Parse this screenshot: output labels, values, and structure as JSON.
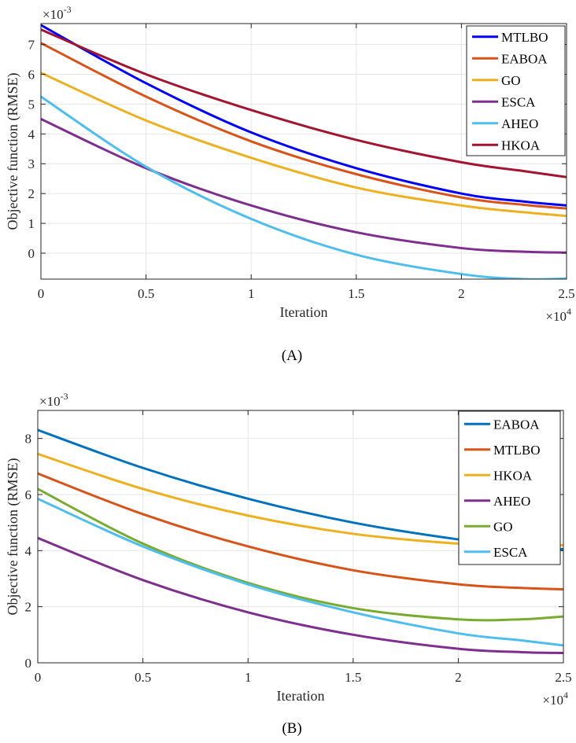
{
  "chart_data": [
    {
      "type": "line",
      "caption": "(A)",
      "xlabel": "Iteration",
      "ylabel": "Objective function (RMSE)",
      "x_multiplier": "×10",
      "x_multiplier_exp": "4",
      "y_multiplier": "×10",
      "y_multiplier_exp": "-3",
      "xlim": [
        0,
        2.5
      ],
      "ylim": [
        -0.87,
        7.7
      ],
      "xticks": [
        0,
        0.5,
        1,
        1.5,
        2,
        2.5
      ],
      "xtick_labels": [
        "0",
        "0.5",
        "1",
        "1.5",
        "2",
        "2.5"
      ],
      "yticks": [
        0,
        1,
        2,
        3,
        4,
        5,
        6,
        7
      ],
      "ytick_labels": [
        "0",
        "1",
        "2",
        "3",
        "4",
        "5",
        "6",
        "7"
      ],
      "grid": true,
      "legend_position": "top-right",
      "x": [
        0,
        0.5,
        1,
        1.5,
        2,
        2.3,
        2.5
      ],
      "series": [
        {
          "name": "MTLBO",
          "color": "#0000ff",
          "values": [
            7.65,
            5.7,
            4.05,
            2.85,
            2.0,
            1.73,
            1.6
          ]
        },
        {
          "name": "EABOA",
          "color": "#d95319",
          "values": [
            7.05,
            5.25,
            3.75,
            2.65,
            1.87,
            1.62,
            1.5
          ]
        },
        {
          "name": "GO",
          "color": "#edb120",
          "values": [
            6.05,
            4.45,
            3.2,
            2.2,
            1.6,
            1.37,
            1.25
          ]
        },
        {
          "name": "ESCA",
          "color": "#7e2f8e",
          "values": [
            4.5,
            2.85,
            1.6,
            0.7,
            0.17,
            0.05,
            0.02
          ]
        },
        {
          "name": "AHEO",
          "color": "#4dbeee",
          "values": [
            5.25,
            2.9,
            1.15,
            -0.05,
            -0.7,
            -0.87,
            -0.85
          ]
        },
        {
          "name": "HKOA",
          "color": "#a2142f",
          "values": [
            7.5,
            6.0,
            4.8,
            3.8,
            3.05,
            2.75,
            2.55
          ]
        }
      ]
    },
    {
      "type": "line",
      "caption": "(B)",
      "xlabel": "Iteration",
      "ylabel": "Objective function (RMSE)",
      "x_multiplier": "×10",
      "x_multiplier_exp": "4",
      "y_multiplier": "×10",
      "y_multiplier_exp": "-3",
      "xlim": [
        0,
        2.5
      ],
      "ylim": [
        0,
        9
      ],
      "xticks": [
        0,
        0.5,
        1,
        1.5,
        2,
        2.5
      ],
      "xtick_labels": [
        "0",
        "0.5",
        "1",
        "1.5",
        "2",
        "2.5"
      ],
      "yticks": [
        0,
        2,
        4,
        6,
        8
      ],
      "ytick_labels": [
        "0",
        "2",
        "4",
        "6",
        "8"
      ],
      "grid": true,
      "legend_position": "top-right",
      "x": [
        0,
        0.5,
        1,
        1.5,
        2,
        2.3,
        2.5
      ],
      "series": [
        {
          "name": "EABOA",
          "color": "#0072bd",
          "values": [
            8.3,
            6.95,
            5.85,
            5.0,
            4.4,
            4.17,
            4.05
          ]
        },
        {
          "name": "MTLBO",
          "color": "#d95319",
          "values": [
            6.75,
            5.3,
            4.15,
            3.3,
            2.8,
            2.67,
            2.62
          ]
        },
        {
          "name": "HKOA",
          "color": "#edb120",
          "values": [
            7.45,
            6.2,
            5.25,
            4.6,
            4.25,
            4.18,
            4.2
          ]
        },
        {
          "name": "AHEO",
          "color": "#7e2f8e",
          "values": [
            4.45,
            2.95,
            1.8,
            1.0,
            0.5,
            0.38,
            0.35
          ]
        },
        {
          "name": "GO",
          "color": "#77ac30",
          "values": [
            6.2,
            4.25,
            2.85,
            1.95,
            1.55,
            1.55,
            1.65
          ]
        },
        {
          "name": "ESCA",
          "color": "#4dbeee",
          "values": [
            5.85,
            4.15,
            2.8,
            1.8,
            1.05,
            0.8,
            0.62
          ]
        }
      ]
    }
  ]
}
